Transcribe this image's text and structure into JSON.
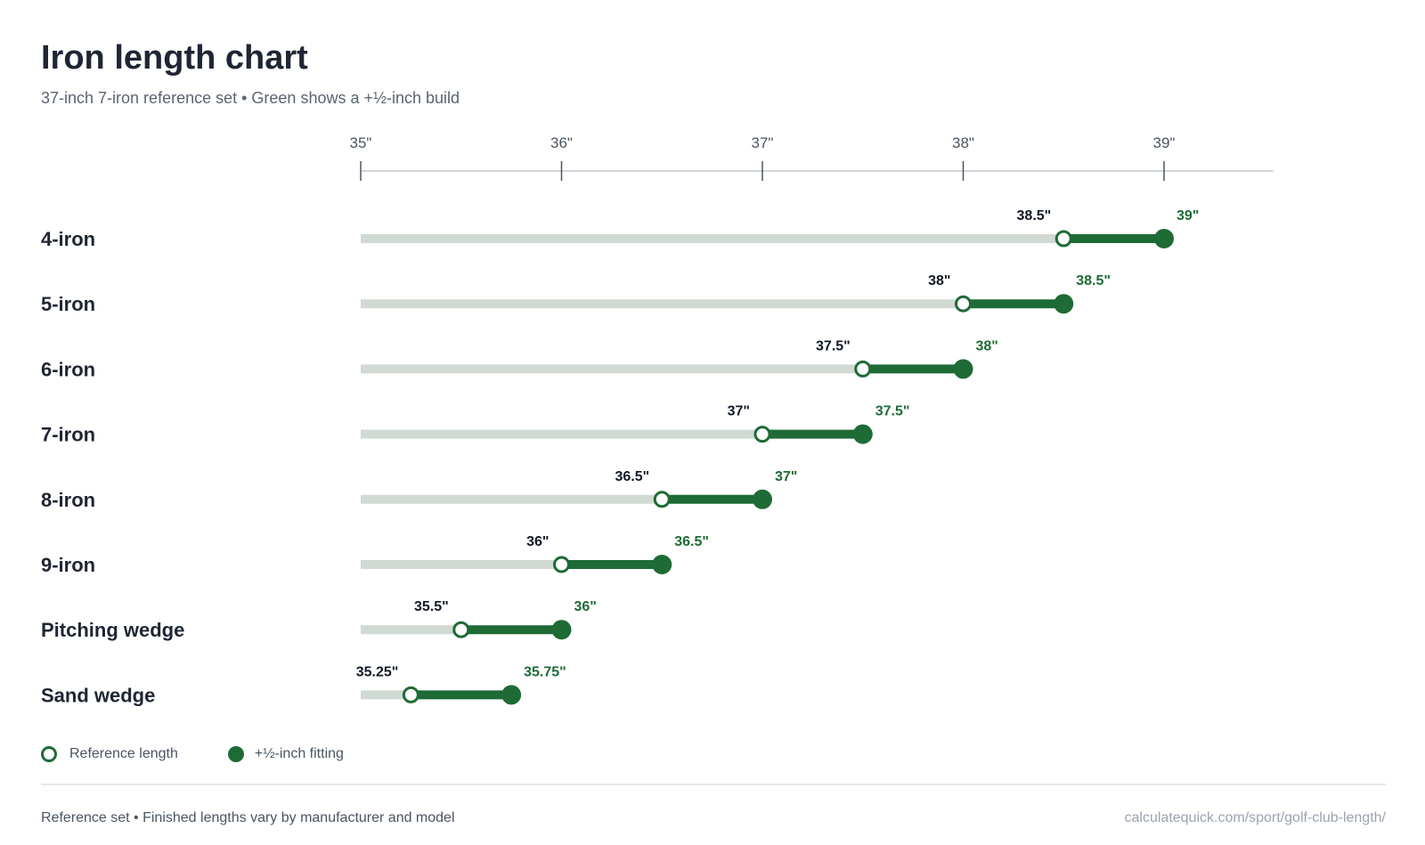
{
  "header": {
    "title": "Iron length chart",
    "subtitle": "37-inch 7-iron reference set • Green shows a +½-inch build"
  },
  "legend": {
    "reference": "Reference length",
    "fitting": "+½-inch fitting"
  },
  "footer": {
    "note": "Reference set • Finished lengths vary by manufacturer and model",
    "source": "calculatequick.com/sport/golf-club-length/"
  },
  "colors": {
    "fitting": "#1e6b35",
    "track": "#d1d9d3",
    "axis": "#d1d5db",
    "tick": "#4b5563"
  },
  "chart_data": {
    "type": "dumbbell",
    "title": "Iron length chart",
    "subtitle": "37-inch 7-iron reference set • Green shows a +½-inch build",
    "xlim": [
      35,
      39.5
    ],
    "ticks": [
      35,
      36,
      37,
      38,
      39
    ],
    "tick_labels": [
      "35\"",
      "36\"",
      "37\"",
      "38\"",
      "39\""
    ],
    "categories": [
      "4-iron",
      "5-iron",
      "6-iron",
      "7-iron",
      "8-iron",
      "9-iron",
      "Pitching wedge",
      "Sand wedge"
    ],
    "series": [
      {
        "name": "Reference length",
        "values": [
          38.5,
          38,
          37.5,
          37,
          36.5,
          36,
          35.5,
          35.25
        ],
        "labels": [
          "38.5\"",
          "38\"",
          "37.5\"",
          "37\"",
          "36.5\"",
          "36\"",
          "35.5\"",
          "35.25\""
        ]
      },
      {
        "name": "+½-inch fitting",
        "values": [
          39,
          38.5,
          38,
          37.5,
          37,
          36.5,
          36,
          35.75
        ],
        "labels": [
          "39\"",
          "38.5\"",
          "38\"",
          "37.5\"",
          "37\"",
          "36.5\"",
          "36\"",
          "35.75\""
        ]
      }
    ],
    "legend_position": "bottom-left"
  }
}
